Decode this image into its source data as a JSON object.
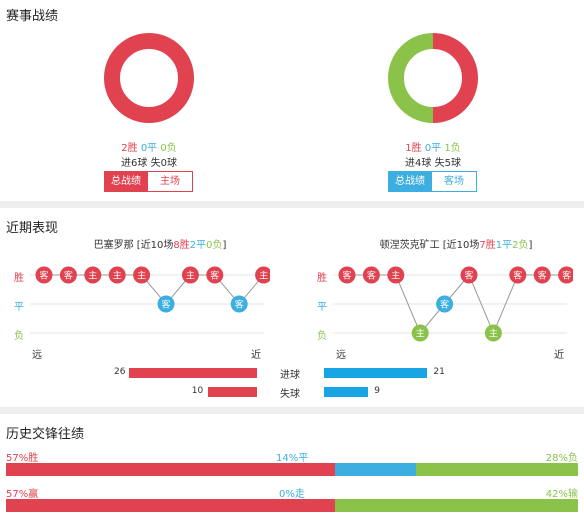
{
  "colors": {
    "win": "#e14250",
    "draw": "#3daee0",
    "loss": "#8bc34a"
  },
  "record_section": {
    "title": "赛事战绩",
    "left": {
      "wins": 2,
      "draws": 0,
      "losses": 0,
      "win_label": "2胜",
      "draw_label": "0平",
      "loss_label": "0负",
      "goals_line": "进6球 失0球",
      "tab_active": "总战绩",
      "tab_inactive": "主场"
    },
    "right": {
      "wins": 1,
      "draws": 0,
      "losses": 1,
      "win_label": "1胜",
      "draw_label": "0平",
      "loss_label": "1负",
      "goals_line": "进4球 失5球",
      "tab_active": "总战绩",
      "tab_inactive": "客场"
    }
  },
  "recent_section": {
    "title": "近期表现",
    "row_labels": {
      "win": "胜",
      "draw": "平",
      "loss": "负"
    },
    "left": {
      "team": "巴塞罗那",
      "summary_prefix": " [近10场",
      "win_text": "8胜",
      "draw_text": "2平",
      "loss_text": "0负",
      "summary_suffix": "]",
      "far": "远",
      "near": "近",
      "results": [
        {
          "res": "W",
          "venue": "客"
        },
        {
          "res": "W",
          "venue": "客"
        },
        {
          "res": "W",
          "venue": "主"
        },
        {
          "res": "W",
          "venue": "主"
        },
        {
          "res": "W",
          "venue": "主"
        },
        {
          "res": "D",
          "venue": "客"
        },
        {
          "res": "W",
          "venue": "主"
        },
        {
          "res": "W",
          "venue": "客"
        },
        {
          "res": "D",
          "venue": "客"
        },
        {
          "res": "W",
          "venue": "主"
        }
      ]
    },
    "right": {
      "team": "顿涅茨克矿工",
      "summary_prefix": " [近10场",
      "win_text": "7胜",
      "draw_text": "1平",
      "loss_text": "2负",
      "summary_suffix": "]",
      "far": "远",
      "near": "近",
      "results": [
        {
          "res": "W",
          "venue": "客"
        },
        {
          "res": "W",
          "venue": "客"
        },
        {
          "res": "W",
          "venue": "主"
        },
        {
          "res": "L",
          "venue": "主"
        },
        {
          "res": "D",
          "venue": "客"
        },
        {
          "res": "W",
          "venue": "客"
        },
        {
          "res": "L",
          "venue": "主"
        },
        {
          "res": "W",
          "venue": "客"
        },
        {
          "res": "W",
          "venue": "客"
        },
        {
          "res": "W",
          "venue": "客"
        }
      ]
    },
    "goals": {
      "scored_label": "进球",
      "conceded_label": "失球",
      "left_scored": 26,
      "left_conceded": 10,
      "right_scored": 21,
      "right_conceded": 9
    }
  },
  "h2h_section": {
    "title": "历史交锋往绩",
    "row1": {
      "win_pct": 57,
      "draw_pct": 14,
      "loss_pct": 28,
      "win_text": "57%胜",
      "draw_text": "14%平",
      "loss_text": "28%负"
    },
    "row2": {
      "win_pct": 57,
      "draw_pct": 0,
      "loss_pct": 42,
      "win_text": "57%赢",
      "draw_text": "0%走",
      "loss_text": "42%输"
    }
  }
}
